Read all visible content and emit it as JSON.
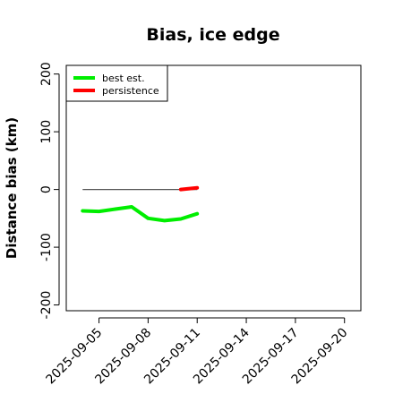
{
  "chart_data": {
    "type": "line",
    "title": "Bias, ice edge",
    "xlabel": "",
    "ylabel": "Distance bias (km)",
    "xlim": [
      "2025-09-03",
      "2025-09-21"
    ],
    "ylim": [
      -210,
      215
    ],
    "y_ticks": [
      -200,
      -100,
      0,
      100,
      200
    ],
    "y_tick_labels": [
      "-200",
      "-100",
      "0",
      "100",
      "200"
    ],
    "x_ticks": [
      "2025-09-05",
      "2025-09-08",
      "2025-09-11",
      "2025-09-14",
      "2025-09-17",
      "2025-09-20"
    ],
    "x_tick_labels": [
      "2025-09-05",
      "2025-09-08",
      "2025-09-11",
      "2025-09-14",
      "2025-09-17",
      "2025-09-20"
    ],
    "grid": false,
    "legend_position": "top-left",
    "zero_line": {
      "x": [
        "2025-09-04",
        "2025-09-11"
      ],
      "y": [
        0,
        0
      ],
      "color": "#555555"
    },
    "series": [
      {
        "name": "best est.",
        "color": "#00ee00",
        "x": [
          "2025-09-04",
          "2025-09-05",
          "2025-09-06",
          "2025-09-07",
          "2025-09-08",
          "2025-09-09",
          "2025-09-10",
          "2025-09-11"
        ],
        "y": [
          -37,
          -38,
          -34,
          -30,
          -50,
          -54,
          -51,
          -42
        ]
      },
      {
        "name": "persistence",
        "color": "#ff0000",
        "x": [
          "2025-09-10",
          "2025-09-11"
        ],
        "y": [
          0,
          3
        ]
      }
    ]
  }
}
